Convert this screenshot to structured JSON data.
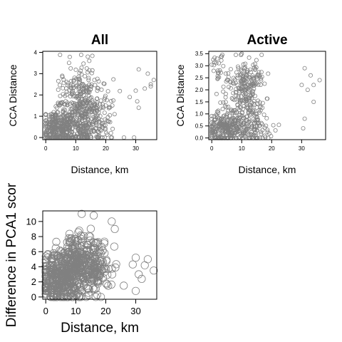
{
  "chart_data": [
    {
      "type": "scatter",
      "title": "All",
      "xlabel": "Distance, km",
      "ylabel": "CCA Distance",
      "xlim": [
        -1,
        37
      ],
      "ylim": [
        -0.1,
        4.05
      ],
      "xticks": [
        0,
        10,
        20,
        30
      ],
      "yticks": [
        0,
        1,
        2,
        3,
        4
      ],
      "grid": false,
      "marker_color": "#808080",
      "clusters": [
        {
          "cx": 4,
          "cy": 0.45,
          "sx": 2.8,
          "sy": 0.4,
          "n": 260
        },
        {
          "cx": 11,
          "cy": 1.6,
          "sx": 3.5,
          "sy": 0.85,
          "n": 330
        },
        {
          "cx": 11,
          "cy": 0.4,
          "sx": 4,
          "sy": 0.35,
          "n": 150
        },
        {
          "cx": 17,
          "cy": 1.1,
          "sx": 3,
          "sy": 0.8,
          "n": 90
        }
      ],
      "points": [
        [
          14,
          3.8
        ],
        [
          14.5,
          3.6
        ],
        [
          31,
          3.2
        ],
        [
          34,
          3.0
        ],
        [
          36,
          2.7
        ],
        [
          35,
          2.5
        ],
        [
          33,
          2.3
        ],
        [
          30,
          2.2
        ],
        [
          28,
          1.9
        ],
        [
          31,
          1.4
        ],
        [
          35,
          2.4
        ],
        [
          30.5,
          1.7
        ]
      ]
    },
    {
      "type": "scatter",
      "title": "Active",
      "xlabel": "Distance, km",
      "ylabel": "CCA Distance",
      "xlim": [
        -1,
        38
      ],
      "ylim": [
        -0.07,
        3.6
      ],
      "xticks": [
        0,
        10,
        20,
        30
      ],
      "yticks": [
        0.0,
        0.5,
        1.0,
        1.5,
        2.0,
        2.5,
        3.0,
        3.5
      ],
      "ytick_labels": [
        "0.0",
        "0.5",
        "1.0",
        "1.5",
        "2.0",
        "2.5",
        "3.0",
        "3.5"
      ],
      "grid": false,
      "marker_color": "#808080",
      "clusters": [
        {
          "cx": 4,
          "cy": 0.4,
          "sx": 2.8,
          "sy": 0.35,
          "n": 230
        },
        {
          "cx": 11,
          "cy": 1.9,
          "sx": 3.2,
          "sy": 0.75,
          "n": 260
        },
        {
          "cx": 12,
          "cy": 0.35,
          "sx": 4,
          "sy": 0.3,
          "n": 120
        },
        {
          "cx": 2,
          "cy": 2.9,
          "sx": 1.2,
          "sy": 0.3,
          "n": 25
        }
      ],
      "points": [
        [
          10,
          3.5
        ],
        [
          31,
          2.9
        ],
        [
          33,
          2.6
        ],
        [
          36,
          2.4
        ],
        [
          34,
          2.2
        ],
        [
          32,
          2.0
        ],
        [
          30,
          2.2
        ],
        [
          31,
          0.8
        ],
        [
          34,
          1.5
        ],
        [
          30.5,
          0.4
        ]
      ]
    },
    {
      "type": "scatter",
      "title": "",
      "xlabel": "Distance, km",
      "ylabel": "Difference in PCA1 scor",
      "xlim": [
        -1,
        37
      ],
      "ylim": [
        -0.3,
        11.4
      ],
      "xticks": [
        0,
        10,
        20,
        30
      ],
      "yticks": [
        0,
        2,
        4,
        6,
        8,
        10
      ],
      "grid": false,
      "marker_color": "#808080",
      "clusters": [
        {
          "cx": 4,
          "cy": 2.6,
          "sx": 3,
          "sy": 1.6,
          "n": 280
        },
        {
          "cx": 11,
          "cy": 4.4,
          "sx": 3.5,
          "sy": 2,
          "n": 300
        },
        {
          "cx": 17,
          "cy": 3.5,
          "sx": 3,
          "sy": 2,
          "n": 90
        }
      ],
      "points": [
        [
          12,
          11
        ],
        [
          16,
          10.8
        ],
        [
          22,
          10
        ],
        [
          23,
          9
        ],
        [
          30,
          5.2
        ],
        [
          34,
          5
        ],
        [
          36,
          3.5
        ],
        [
          31,
          3
        ],
        [
          32,
          2.4
        ],
        [
          30,
          0.8
        ],
        [
          29,
          4.3
        ],
        [
          26,
          1.5
        ],
        [
          33,
          4.2
        ]
      ]
    }
  ]
}
